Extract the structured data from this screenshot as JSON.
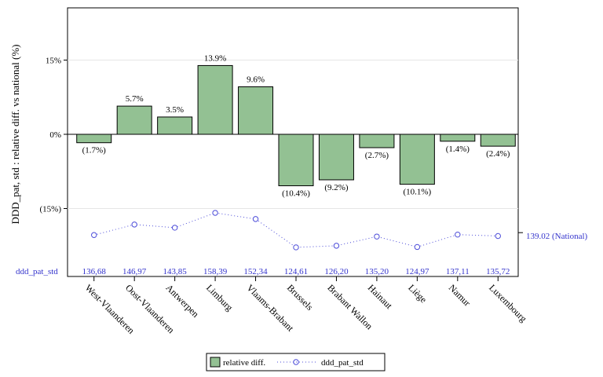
{
  "chart_data": {
    "type": "bar",
    "ylabel": "DDD_pat, std : relative diff. vs national (%)",
    "categories": [
      "West-Vlaanderen",
      "Oost-Vlaanderen",
      "Antwerpen",
      "Limburg",
      "Vlaams-Brabant",
      "Brussels",
      "Brabant Wallon",
      "Hainaut",
      "Liège",
      "Namur",
      "Luxembourg"
    ],
    "series": [
      {
        "name": "relative diff.",
        "values": [
          -1.7,
          5.7,
          3.5,
          13.9,
          9.6,
          -10.4,
          -9.2,
          -2.7,
          -10.1,
          -1.4,
          -2.4
        ],
        "labels": [
          "(1.7%)",
          "5.7%",
          "3.5%",
          "13.9%",
          "9.6%",
          "(10.4%)",
          "(9.2%)",
          "(2.7%)",
          "(10.1%)",
          "(1.4%)",
          "(2.4%)"
        ],
        "color": "#93c193"
      },
      {
        "name": "ddd_pat_std",
        "values": [
          136.68,
          146.97,
          143.85,
          158.39,
          152.34,
          124.61,
          126.2,
          135.2,
          124.97,
          137.11,
          135.72
        ],
        "labels": [
          "136,68",
          "146,97",
          "143,85",
          "158,39",
          "152,34",
          "124,61",
          "126,20",
          "135,20",
          "124,97",
          "137,11",
          "135,72"
        ],
        "color": "#4d4dd9"
      }
    ],
    "yticks": [
      {
        "value": 15,
        "label": "15%"
      },
      {
        "value": 0,
        "label": "0%"
      },
      {
        "value": -15,
        "label": "(15%)"
      }
    ],
    "national_label": "139.02 (National)",
    "national_value": 139.02,
    "table_row_label": "ddd_pat_std",
    "legend": [
      "relative diff.",
      "ddd_pat_std"
    ],
    "legend_position": "bottom",
    "grid": true
  }
}
